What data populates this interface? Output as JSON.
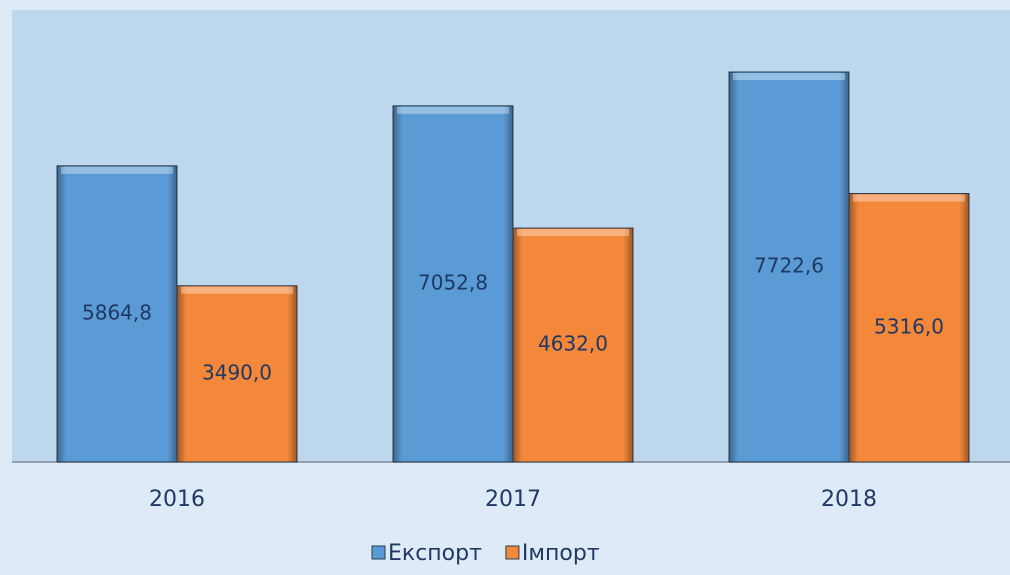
{
  "chart_data": {
    "type": "bar",
    "categories": [
      "2016",
      "2017",
      "2018"
    ],
    "series": [
      {
        "name": "Експорт",
        "color": "#5b9bd5",
        "values": [
          5864.8,
          7052.8,
          7722.6
        ],
        "value_labels": [
          "5864,8",
          "7052,8",
          "7722,6"
        ]
      },
      {
        "name": "Імпорт",
        "color": "#f4883a",
        "values": [
          3490.0,
          4632.0,
          5316.0
        ],
        "value_labels": [
          "3490,0",
          "4632,0",
          "5316,0"
        ]
      }
    ]
  }
}
